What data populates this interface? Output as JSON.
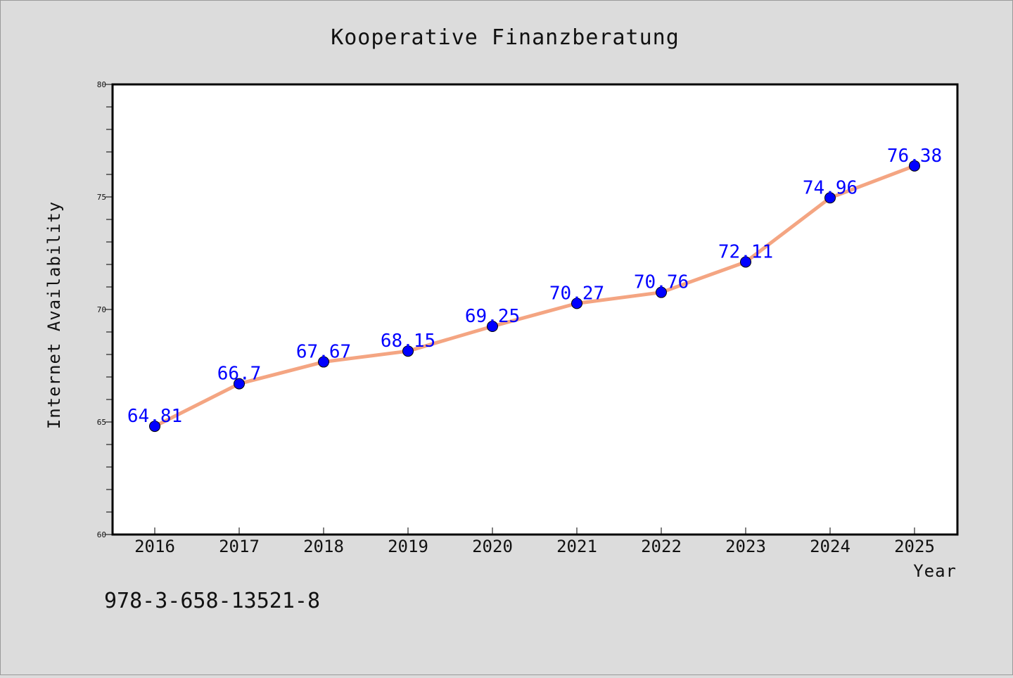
{
  "chart_data": {
    "type": "line",
    "title": "Kooperative Finanzberatung",
    "xlabel": "Year",
    "ylabel": "Internet Availability",
    "categories": [
      "2016",
      "2017",
      "2018",
      "2019",
      "2020",
      "2021",
      "2022",
      "2023",
      "2024",
      "2025"
    ],
    "series": [
      {
        "values": [
          64.81,
          66.7,
          67.67,
          68.15,
          69.25,
          70.27,
          70.76,
          72.11,
          74.96,
          76.38
        ],
        "labels": [
          "64.81",
          "66.7",
          "67.67",
          "68.15",
          "69.25",
          "70.27",
          "70.76",
          "72.11",
          "74.96",
          "76.38"
        ],
        "line_color": "#f4a582",
        "marker_color": "#0000ff"
      }
    ],
    "ylim": [
      60,
      80
    ],
    "yticks": [
      "60",
      "65",
      "70",
      "75",
      "80"
    ],
    "grid": false,
    "legend": "none"
  },
  "footer_text": "978-3-658-13521-8",
  "colors": {
    "background": "#dcdcdc",
    "plot_background": "#ffffff",
    "data_label": "#0000ff"
  }
}
